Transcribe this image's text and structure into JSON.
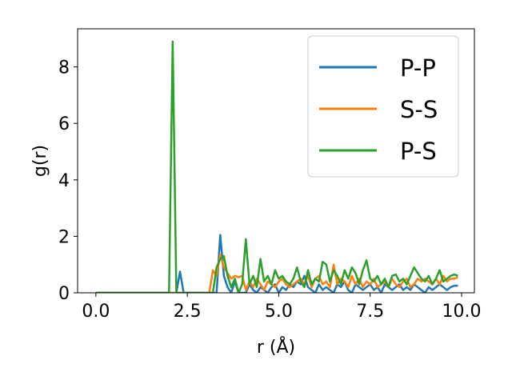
{
  "chart_data": {
    "type": "line",
    "xlabel": "r (Å)",
    "ylabel": "g(r)",
    "xlim": [
      -0.5,
      10.35
    ],
    "ylim": [
      0,
      9.35
    ],
    "xticks": [
      0.0,
      2.5,
      5.0,
      7.5,
      10.0
    ],
    "xtick_labels": [
      "0.0",
      "2.5",
      "5.0",
      "7.5",
      "10.0"
    ],
    "yticks": [
      0,
      2,
      4,
      6,
      8
    ],
    "ytick_labels": [
      "0",
      "2",
      "4",
      "6",
      "8"
    ],
    "grid": false,
    "legend_position": "top-right",
    "series": [
      {
        "name": "P-P",
        "color": "#1f77b4",
        "x": [
          0.0,
          2.1,
          2.2,
          2.3,
          2.4,
          3.3,
          3.4,
          3.5,
          3.6,
          3.7,
          3.8,
          3.9,
          4.0,
          4.1,
          4.2,
          4.3,
          4.4,
          4.5,
          4.6,
          4.7,
          4.8,
          4.9,
          5.0,
          5.1,
          5.2,
          5.3,
          5.4,
          5.5,
          5.6,
          5.7,
          5.8,
          5.9,
          6.0,
          6.1,
          6.2,
          6.3,
          6.4,
          6.5,
          6.6,
          6.7,
          6.8,
          6.9,
          7.0,
          7.1,
          7.2,
          7.3,
          7.4,
          7.5,
          7.6,
          7.7,
          7.8,
          7.9,
          8.0,
          8.1,
          8.2,
          8.3,
          8.4,
          8.5,
          8.6,
          8.7,
          8.8,
          8.9,
          9.0,
          9.1,
          9.2,
          9.3,
          9.4,
          9.5,
          9.6,
          9.7,
          9.8,
          9.9
        ],
        "y": [
          0,
          0,
          0,
          0.75,
          0,
          0,
          2.05,
          0.6,
          0.2,
          0.0,
          0.4,
          0.0,
          0.0,
          0.0,
          0.3,
          0.1,
          0.0,
          0.2,
          0.1,
          0.0,
          0.2,
          0.3,
          0.0,
          0.2,
          0.1,
          0.3,
          0.2,
          0.4,
          0.3,
          0.6,
          0.2,
          0.1,
          0.0,
          0.3,
          0.1,
          0.2,
          0.1,
          0.0,
          0.3,
          0.2,
          0.4,
          0.1,
          0.0,
          0.3,
          0.2,
          0.1,
          0.2,
          0.3,
          0.1,
          0.2,
          0.0,
          0.3,
          0.2,
          0.1,
          0.2,
          0.3,
          0.1,
          0.2,
          0.1,
          0.3,
          0.2,
          0.1,
          0.0,
          0.2,
          0.1,
          0.2,
          0.3,
          0.2,
          0.1,
          0.2,
          0.25,
          0.25
        ]
      },
      {
        "name": "S-S",
        "color": "#ff7f0e",
        "x": [
          0.0,
          3.1,
          3.2,
          3.3,
          3.4,
          3.5,
          3.6,
          3.7,
          3.8,
          3.9,
          4.0,
          4.1,
          4.2,
          4.3,
          4.4,
          4.5,
          4.6,
          4.7,
          4.8,
          4.9,
          5.0,
          5.1,
          5.2,
          5.3,
          5.4,
          5.5,
          5.6,
          5.7,
          5.8,
          5.9,
          6.0,
          6.1,
          6.2,
          6.3,
          6.4,
          6.5,
          6.6,
          6.7,
          6.8,
          6.9,
          7.0,
          7.1,
          7.2,
          7.3,
          7.4,
          7.5,
          7.6,
          7.7,
          7.8,
          7.9,
          8.0,
          8.1,
          8.2,
          8.3,
          8.4,
          8.5,
          8.6,
          8.7,
          8.8,
          8.9,
          9.0,
          9.1,
          9.2,
          9.3,
          9.4,
          9.5,
          9.6,
          9.7,
          9.8,
          9.9
        ],
        "y": [
          0,
          0,
          0.8,
          0.6,
          1.35,
          0.9,
          0.7,
          0.5,
          0.6,
          0.55,
          0.6,
          0.1,
          0.4,
          0.2,
          0.5,
          0.3,
          0.1,
          0.4,
          0.3,
          0.2,
          0.4,
          0.5,
          0.3,
          0.2,
          0.3,
          0.4,
          0.5,
          0.3,
          0.6,
          0.2,
          0.5,
          0.6,
          0.3,
          0.4,
          0.2,
          1.0,
          0.3,
          0.5,
          0.4,
          0.2,
          0.6,
          0.3,
          0.5,
          0.2,
          0.4,
          0.3,
          0.5,
          0.2,
          0.3,
          0.4,
          0.2,
          0.5,
          0.3,
          0.2,
          0.4,
          0.5,
          0.2,
          0.3,
          0.5,
          0.4,
          0.5,
          0.4,
          0.3,
          0.5,
          0.3,
          0.6,
          0.4,
          0.5,
          0.5,
          0.55
        ]
      },
      {
        "name": "P-S",
        "color": "#2ca02c",
        "x": [
          0.0,
          2.0,
          2.1,
          2.2,
          3.1,
          3.2,
          3.3,
          3.4,
          3.5,
          3.6,
          3.7,
          3.8,
          3.9,
          4.0,
          4.1,
          4.2,
          4.3,
          4.4,
          4.5,
          4.6,
          4.7,
          4.8,
          4.9,
          5.0,
          5.1,
          5.2,
          5.3,
          5.4,
          5.5,
          5.6,
          5.7,
          5.8,
          5.9,
          6.0,
          6.1,
          6.2,
          6.3,
          6.4,
          6.5,
          6.6,
          6.7,
          6.8,
          6.9,
          7.0,
          7.1,
          7.2,
          7.3,
          7.4,
          7.5,
          7.6,
          7.7,
          7.8,
          7.9,
          8.0,
          8.1,
          8.2,
          8.3,
          8.4,
          8.5,
          8.6,
          8.7,
          8.8,
          8.9,
          9.0,
          9.1,
          9.2,
          9.3,
          9.4,
          9.5,
          9.6,
          9.7,
          9.8,
          9.9
        ],
        "y": [
          0,
          0,
          8.9,
          0,
          0,
          0,
          0.9,
          1.2,
          1.3,
          0.6,
          0.2,
          0.5,
          0.0,
          0.3,
          1.9,
          0.3,
          0.6,
          0.2,
          1.2,
          0.4,
          0.6,
          0.3,
          0.8,
          0.5,
          0.6,
          0.4,
          0.3,
          0.5,
          0.9,
          0.4,
          0.2,
          0.8,
          0.3,
          0.5,
          0.4,
          1.1,
          1.0,
          0.4,
          0.8,
          0.6,
          0.3,
          0.8,
          0.5,
          0.9,
          0.7,
          0.3,
          0.8,
          1.15,
          0.5,
          0.4,
          0.6,
          0.3,
          0.5,
          0.2,
          0.6,
          0.65,
          0.4,
          0.5,
          0.3,
          0.6,
          0.9,
          0.7,
          0.5,
          0.4,
          0.6,
          0.3,
          0.5,
          0.8,
          0.4,
          0.5,
          0.6,
          0.65,
          0.6
        ]
      }
    ]
  }
}
